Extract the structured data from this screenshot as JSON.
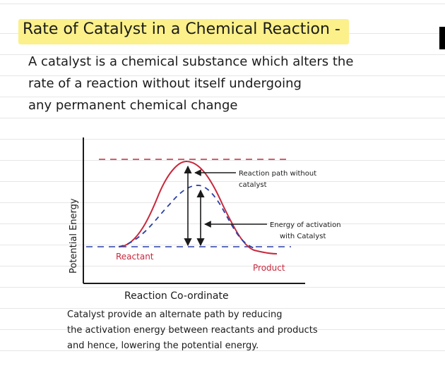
{
  "title": "Rate of Catalyst in a Chemical Reaction -",
  "definition": {
    "line1": "A catalyst is a chemical substance which alters the",
    "line2": "rate of a reaction without itself undergoing",
    "line3": "any permanent chemical change"
  },
  "diagram": {
    "y_axis_label": "Potential Energy",
    "x_axis_label": "Reaction Co-ordinate",
    "reactant_label": "Reactant",
    "product_label": "Product",
    "uncatalysed_label_1": "Reaction path without",
    "uncatalysed_label_2": "catalyst",
    "activation_label_1": "Energy of activation",
    "activation_label_2": "with Catalyst",
    "colors": {
      "uncatalysed_curve": "#c8283c",
      "catalysed_curve": "#2a3fa6",
      "ink": "#1b1b1b",
      "reactant_label": "#c8283c",
      "product_label": "#c8283c"
    }
  },
  "caption": {
    "line1": "Catalyst provide an alternate path by reducing",
    "line2": "the activation energy between reactants and products",
    "line3": "and hence, lowering the potential energy."
  }
}
